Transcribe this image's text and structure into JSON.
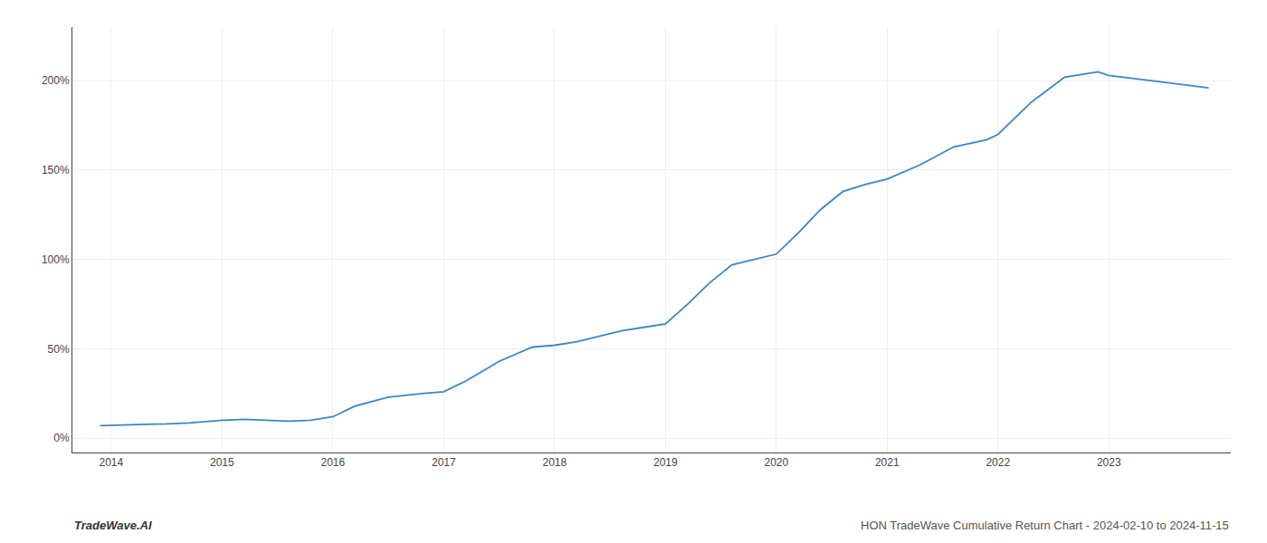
{
  "chart_data": {
    "type": "line",
    "title": "HON TradeWave Cumulative Return Chart - 2024-02-10 to 2024-11-15",
    "annotations": [
      "TradeWave.AI"
    ],
    "x": [
      2013.9,
      2014.1,
      2014.3,
      2014.5,
      2014.7,
      2014.9,
      2015.0,
      2015.2,
      2015.4,
      2015.6,
      2015.8,
      2016.0,
      2016.2,
      2016.5,
      2016.8,
      2017.0,
      2017.2,
      2017.5,
      2017.8,
      2018.0,
      2018.2,
      2018.4,
      2018.6,
      2018.8,
      2019.0,
      2019.2,
      2019.4,
      2019.6,
      2019.8,
      2020.0,
      2020.2,
      2020.4,
      2020.6,
      2020.8,
      2021.0,
      2021.3,
      2021.6,
      2021.9,
      2022.0,
      2022.3,
      2022.6,
      2022.9,
      2023.0,
      2023.5,
      2023.9
    ],
    "values": [
      7,
      7.5,
      7.8,
      8,
      8.5,
      9.5,
      10,
      10.5,
      10,
      9.5,
      10,
      12,
      18,
      23,
      25,
      26,
      32,
      43,
      51,
      52,
      54,
      57,
      60,
      62,
      64,
      75,
      87,
      97,
      100,
      103,
      115,
      128,
      138,
      142,
      145,
      153,
      163,
      167,
      170,
      188,
      202,
      205,
      203,
      199,
      196
    ],
    "color": "#3a86c8",
    "xlim": [
      2013.65,
      2024.1
    ],
    "xticks": [
      2014,
      2015,
      2016,
      2017,
      2018,
      2019,
      2020,
      2021,
      2022,
      2023
    ],
    "ylim": [
      -8,
      230
    ],
    "yticks": [
      {
        "value": 0,
        "label": "0%"
      },
      {
        "value": 50,
        "label": "50%"
      },
      {
        "value": 100,
        "label": "100%"
      },
      {
        "value": 150,
        "label": "150%"
      },
      {
        "value": 200,
        "label": "200%"
      }
    ],
    "grid": true
  }
}
